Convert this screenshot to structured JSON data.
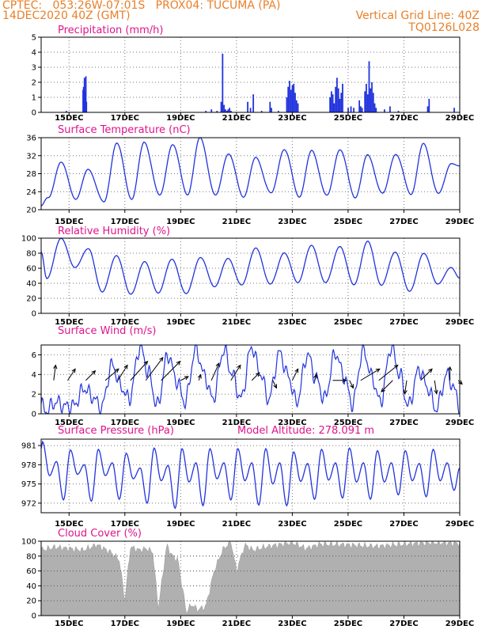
{
  "header": {
    "line1_left": "CPTEC:   053:26W-07:01S   PROX04: TUCUMA (PA)",
    "line2_left": "14DEC2020 40Z (GMT)",
    "line2_right": "Vertical Grid Line: 40Z",
    "line3_right": "TQ0126L028"
  },
  "colors": {
    "line": "#2233dd",
    "title": "#e0148c",
    "header": "#e8802a",
    "cloud": "#b0b0b0"
  },
  "chart_data": [
    {
      "type": "bar",
      "title": "Precipitation (mm/h)",
      "x_tick_labels": [
        "15DEC",
        "17DEC",
        "19DEC",
        "21DEC",
        "23DEC",
        "25DEC",
        "27DEC",
        "29DEC"
      ],
      "x_range_days": [
        0,
        15
      ],
      "ylim": [
        0,
        5
      ],
      "y_ticks": [
        0,
        1,
        2,
        3,
        4,
        5
      ],
      "x_days": [
        0.9,
        1.5,
        1.52,
        1.55,
        1.57,
        1.6,
        1.62,
        5.9,
        6.1,
        6.3,
        6.45,
        6.5,
        6.55,
        6.6,
        6.65,
        6.7,
        6.75,
        6.8,
        7.4,
        7.5,
        7.6,
        7.9,
        8.2,
        8.25,
        8.5,
        8.8,
        8.85,
        8.9,
        8.95,
        9.0,
        9.05,
        9.1,
        9.15,
        9.2,
        10.35,
        10.4,
        10.45,
        10.5,
        10.55,
        10.6,
        10.65,
        10.7,
        10.75,
        10.8,
        11.0,
        11.1,
        11.2,
        11.4,
        11.45,
        11.5,
        11.6,
        11.65,
        11.7,
        11.75,
        11.8,
        11.85,
        11.9,
        11.95,
        12.0,
        12.3,
        12.5,
        12.8,
        13.85,
        13.9,
        14.8
      ],
      "values": [
        0.1,
        1.5,
        1.7,
        2.3,
        1.4,
        2.4,
        0.7,
        0.1,
        0.2,
        0.1,
        0.7,
        3.9,
        0.5,
        0.2,
        0.1,
        0.2,
        0.3,
        0.1,
        0.7,
        0.3,
        1.2,
        0.1,
        0.7,
        0.3,
        0.1,
        1.0,
        1.7,
        2.1,
        1.5,
        1.8,
        1.9,
        1.3,
        0.8,
        0.6,
        1.0,
        1.4,
        1.2,
        0.6,
        1.7,
        2.3,
        1.6,
        0.9,
        1.3,
        1.9,
        0.3,
        0.4,
        0.3,
        0.8,
        0.4,
        0.3,
        1.4,
        1.9,
        1.2,
        3.4,
        1.6,
        2.0,
        1.3,
        0.6,
        0.3,
        0.2,
        0.4,
        0.1,
        0.4,
        0.9,
        0.3
      ]
    },
    {
      "type": "line",
      "title": "Surface Temperature (nC)",
      "x_tick_labels": [
        "15DEC",
        "17DEC",
        "19DEC",
        "21DEC",
        "23DEC",
        "25DEC",
        "27DEC",
        "29DEC"
      ],
      "ylim": [
        20,
        36
      ],
      "y_ticks": [
        20,
        24,
        28,
        32,
        36
      ],
      "min": [
        22.5,
        22.5,
        21.5,
        22.5,
        23.0,
        23.5,
        23.0,
        23.0,
        23.5,
        23.0,
        23.0,
        22.8,
        23.5,
        23.5,
        23.5
      ],
      "max": [
        30.5,
        29.0,
        34.8,
        35.0,
        34.5,
        36.0,
        32.5,
        31.5,
        33.5,
        33.0,
        33.5,
        32.0,
        32.5,
        34.5,
        30.5
      ],
      "start": 20.8,
      "end": 29.5
    },
    {
      "type": "line",
      "title": "Relative Humidity (%)",
      "x_tick_labels": [
        "15DEC",
        "17DEC",
        "19DEC",
        "21DEC",
        "23DEC",
        "25DEC",
        "27DEC",
        "29DEC"
      ],
      "ylim": [
        0,
        100
      ],
      "y_ticks": [
        0,
        20,
        40,
        60,
        80,
        100
      ],
      "max": [
        100,
        85,
        78,
        68,
        72,
        75,
        72,
        88,
        80,
        90,
        90,
        95,
        82,
        80,
        60
      ],
      "min": [
        45,
        62,
        28,
        25,
        28,
        25,
        36,
        38,
        38,
        42,
        40,
        38,
        38,
        28,
        40
      ],
      "start": 82,
      "end": 48
    },
    {
      "type": "line",
      "title": "Surface Wind (m/s)",
      "x_tick_labels": [
        "15DEC",
        "17DEC",
        "19DEC",
        "21DEC",
        "23DEC",
        "25DEC",
        "27DEC",
        "29DEC"
      ],
      "ylim": [
        0,
        7
      ],
      "y_ticks": [
        0,
        2,
        4,
        6
      ],
      "peaks": [
        1.2,
        2.6,
        5.0,
        6.8,
        6.0,
        6.6,
        6.5,
        6.8,
        6.2,
        6.0,
        6.2,
        6.5,
        6.8,
        4.5,
        4.0
      ],
      "lows": [
        0.3,
        0.8,
        0.6,
        1.5,
        0.8,
        1.2,
        1.5,
        1.5,
        1.5,
        1.2,
        1.5,
        1.0,
        1.2,
        0.8,
        0.5
      ],
      "arrows": [
        {
          "day": 0.45,
          "u": 0.1,
          "v": 0.8
        },
        {
          "day": 0.95,
          "u": 0.4,
          "v": 0.6
        },
        {
          "day": 1.6,
          "u": 0.5,
          "v": 0.5
        },
        {
          "day": 2.3,
          "u": 0.7,
          "v": 0.6
        },
        {
          "day": 2.75,
          "u": 0.5,
          "v": 0.8
        },
        {
          "day": 3.2,
          "u": 0.9,
          "v": 1.0
        },
        {
          "day": 3.75,
          "u": 0.9,
          "v": 1.2
        },
        {
          "day": 4.3,
          "u": 1.0,
          "v": 1.0
        },
        {
          "day": 5.0,
          "u": 0.4,
          "v": 0.2
        },
        {
          "day": 5.65,
          "u": 0.1,
          "v": 0.3
        },
        {
          "day": 6.1,
          "u": 0.4,
          "v": 0.9
        },
        {
          "day": 6.8,
          "u": 0.5,
          "v": 0.8
        },
        {
          "day": 7.55,
          "u": 0.4,
          "v": 0.4
        },
        {
          "day": 8.3,
          "u": 0.2,
          "v": -0.4
        },
        {
          "day": 9.0,
          "u": 0.3,
          "v": 0.6
        },
        {
          "day": 9.8,
          "u": 0.1,
          "v": 0.3
        },
        {
          "day": 10.45,
          "u": 0.7,
          "v": 0.0
        },
        {
          "day": 11.05,
          "u": 0.2,
          "v": -0.4
        },
        {
          "day": 11.45,
          "u": 1.0,
          "v": 0.6
        },
        {
          "day": 12.1,
          "u": 1.0,
          "v": 0.8
        },
        {
          "day": 12.6,
          "u": -0.6,
          "v": -0.6
        },
        {
          "day": 13.1,
          "u": -0.1,
          "v": -0.7
        },
        {
          "day": 13.6,
          "u": 0.6,
          "v": 0.6
        },
        {
          "day": 14.1,
          "u": 0.1,
          "v": -0.7
        },
        {
          "day": 14.65,
          "u": 0.0,
          "v": 0.7
        },
        {
          "day": 14.95,
          "u": 0.2,
          "v": -0.2
        }
      ]
    },
    {
      "type": "line",
      "title": "Surface Pressure (hPa)",
      "annotation": "Model Altitude: 278.091 m",
      "x_tick_labels": [
        "15DEC",
        "17DEC",
        "19DEC",
        "21DEC",
        "23DEC",
        "25DEC",
        "27DEC",
        "29DEC"
      ],
      "ylim": [
        970.5,
        982
      ],
      "y_ticks": [
        972,
        975,
        978,
        981
      ],
      "tick_labels": [
        "972",
        "975",
        "978",
        "981"
      ],
      "start": 980.5,
      "hi1": [
        981.6,
        980.3,
        980.4,
        979.8,
        980.6,
        980.5,
        980.5,
        980.5,
        980.5,
        980.0,
        980.4,
        980.6,
        980.2,
        980.2,
        980.4
      ],
      "lo1": [
        976.3,
        976.5,
        976.3,
        975.8,
        975.5,
        975.3,
        975.8,
        975.5,
        975.0,
        975.4,
        975.6,
        975.3,
        975.3,
        975.5,
        975.5
      ],
      "hi2": [
        978.5,
        978.0,
        978.3,
        977.5,
        977.9,
        978.3,
        978.3,
        978.3,
        978.3,
        978.2,
        978.3,
        978.3,
        978.3,
        978.2,
        978.3
      ],
      "lo2": [
        972.5,
        972.3,
        972.6,
        972.0,
        971.2,
        971.6,
        972.5,
        971.7,
        971.6,
        972.6,
        972.8,
        972.6,
        973.3,
        973.0,
        974.0
      ]
    },
    {
      "type": "area",
      "title": "Cloud Cover (%)",
      "x_tick_labels": [
        "15DEC",
        "17DEC",
        "19DEC",
        "21DEC",
        "23DEC",
        "25DEC",
        "27DEC",
        "29DEC"
      ],
      "ylim": [
        0,
        100
      ],
      "y_ticks": [
        0,
        20,
        40,
        60,
        80,
        100
      ],
      "x_days": [
        0,
        0.5,
        1.0,
        1.5,
        2.0,
        2.5,
        2.8,
        3.0,
        3.2,
        3.5,
        3.8,
        4.0,
        4.2,
        4.5,
        4.7,
        4.9,
        5.2,
        5.4,
        5.6,
        5.9,
        6.2,
        6.5,
        6.8,
        7.0,
        7.3,
        7.6,
        8.0,
        8.5,
        9.0,
        9.5,
        10.0,
        11.0,
        12.0,
        13.0,
        14.0,
        15.0
      ],
      "values": [
        88,
        92,
        90,
        88,
        95,
        85,
        75,
        20,
        92,
        88,
        90,
        85,
        10,
        95,
        80,
        75,
        5,
        15,
        8,
        12,
        60,
        88,
        100,
        60,
        95,
        88,
        92,
        95,
        98,
        90,
        96,
        95,
        93,
        96,
        98,
        97
      ]
    }
  ]
}
